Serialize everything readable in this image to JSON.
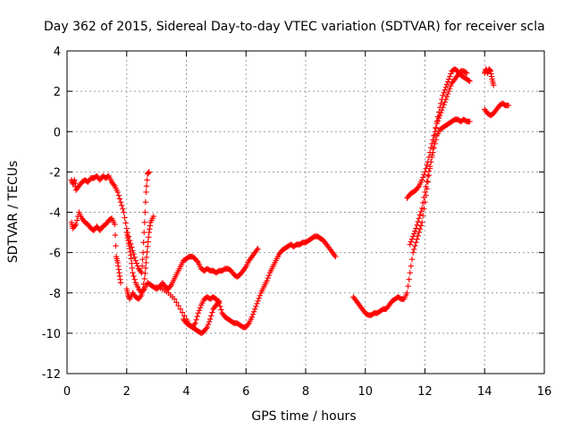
{
  "chart_data": {
    "type": "scatter",
    "title": "Day 362 of 2015, Sidereal Day-to-day VTEC variation (SDTVAR) for receiver scla",
    "xlabel": "GPS time / hours",
    "ylabel": "SDTVAR / TECUs",
    "xlim": [
      0,
      16
    ],
    "ylim": [
      -12,
      4
    ],
    "xticks": [
      0,
      2,
      4,
      6,
      8,
      10,
      12,
      14,
      16
    ],
    "yticks": [
      -12,
      -10,
      -8,
      -6,
      -4,
      -2,
      0,
      2,
      4
    ],
    "xtick_labels": [
      "0",
      "2",
      "4",
      "6",
      "8",
      "10",
      "12",
      "14",
      "16"
    ],
    "ytick_labels": [
      "-12",
      "-10",
      "-8",
      "-6",
      "-4",
      "-2",
      "0",
      "2",
      "4"
    ],
    "grid": true,
    "marker": "+",
    "color": "#ff0000",
    "series": [
      {
        "points": [
          [
            0.15,
            -2.4
          ],
          [
            0.2,
            -2.6
          ],
          [
            0.25,
            -2.4
          ],
          [
            0.3,
            -2.9
          ],
          [
            0.4,
            -2.7
          ],
          [
            0.5,
            -2.5
          ],
          [
            0.6,
            -2.4
          ],
          [
            0.7,
            -2.5
          ],
          [
            0.8,
            -2.3
          ],
          [
            0.9,
            -2.3
          ],
          [
            1.0,
            -2.2
          ],
          [
            1.1,
            -2.4
          ],
          [
            1.2,
            -2.2
          ],
          [
            1.3,
            -2.3
          ],
          [
            1.4,
            -2.2
          ],
          [
            1.5,
            -2.5
          ],
          [
            1.6,
            -2.7
          ],
          [
            1.7,
            -3.0
          ],
          [
            1.8,
            -3.5
          ],
          [
            1.9,
            -4.0
          ],
          [
            2.0,
            -4.8
          ],
          [
            2.1,
            -5.4
          ],
          [
            2.2,
            -5.9
          ],
          [
            2.3,
            -6.4
          ],
          [
            2.4,
            -6.8
          ],
          [
            2.5,
            -7.0
          ],
          [
            2.55,
            -6.0
          ],
          [
            2.6,
            -4.5
          ],
          [
            2.65,
            -3.0
          ],
          [
            2.7,
            -2.1
          ],
          [
            2.75,
            -2.0
          ]
        ]
      },
      {
        "points": [
          [
            0.15,
            -4.5
          ],
          [
            0.2,
            -4.8
          ],
          [
            0.3,
            -4.6
          ],
          [
            0.4,
            -4.0
          ],
          [
            0.5,
            -4.3
          ],
          [
            0.6,
            -4.5
          ],
          [
            0.7,
            -4.6
          ],
          [
            0.8,
            -4.8
          ],
          [
            0.9,
            -4.9
          ],
          [
            1.0,
            -4.7
          ],
          [
            1.1,
            -4.9
          ],
          [
            1.2,
            -4.7
          ],
          [
            1.3,
            -4.6
          ],
          [
            1.4,
            -4.4
          ],
          [
            1.5,
            -4.3
          ],
          [
            1.6,
            -4.6
          ],
          [
            1.65,
            -6.2
          ],
          [
            1.7,
            -6.5
          ],
          [
            1.75,
            -7.0
          ],
          [
            1.8,
            -7.5
          ]
        ]
      },
      {
        "points": [
          [
            2.0,
            -7.8
          ],
          [
            2.05,
            -8.1
          ],
          [
            2.1,
            -8.3
          ],
          [
            2.2,
            -8.0
          ],
          [
            2.3,
            -8.2
          ],
          [
            2.4,
            -8.3
          ],
          [
            2.5,
            -8.1
          ],
          [
            2.6,
            -7.3
          ],
          [
            2.65,
            -6.5
          ],
          [
            2.7,
            -5.7
          ],
          [
            2.75,
            -5.0
          ],
          [
            2.8,
            -4.5
          ],
          [
            2.9,
            -4.2
          ]
        ]
      },
      {
        "points": [
          [
            2.0,
            -5.0
          ],
          [
            2.05,
            -5.4
          ],
          [
            2.1,
            -5.8
          ],
          [
            2.15,
            -6.3
          ],
          [
            2.2,
            -7.0
          ],
          [
            2.3,
            -7.5
          ],
          [
            2.4,
            -7.8
          ],
          [
            2.5,
            -8.0
          ],
          [
            2.6,
            -7.8
          ],
          [
            2.7,
            -7.5
          ],
          [
            2.8,
            -7.6
          ],
          [
            2.9,
            -7.7
          ],
          [
            3.0,
            -7.8
          ],
          [
            3.1,
            -7.7
          ],
          [
            3.2,
            -7.5
          ],
          [
            3.3,
            -7.7
          ],
          [
            3.4,
            -7.8
          ],
          [
            3.5,
            -7.6
          ],
          [
            3.6,
            -7.3
          ],
          [
            3.7,
            -7.0
          ],
          [
            3.8,
            -6.7
          ],
          [
            3.9,
            -6.4
          ],
          [
            4.0,
            -6.3
          ],
          [
            4.1,
            -6.2
          ],
          [
            4.2,
            -6.2
          ],
          [
            4.3,
            -6.3
          ],
          [
            4.4,
            -6.5
          ],
          [
            4.5,
            -6.8
          ],
          [
            4.6,
            -6.9
          ],
          [
            4.7,
            -6.8
          ],
          [
            4.8,
            -6.9
          ],
          [
            4.9,
            -6.9
          ],
          [
            5.0,
            -7.0
          ],
          [
            5.1,
            -6.9
          ],
          [
            5.2,
            -6.9
          ],
          [
            5.3,
            -6.8
          ],
          [
            5.4,
            -6.8
          ],
          [
            5.5,
            -6.9
          ],
          [
            5.6,
            -7.1
          ],
          [
            5.7,
            -7.2
          ],
          [
            5.8,
            -7.1
          ],
          [
            5.9,
            -6.9
          ],
          [
            6.0,
            -6.7
          ],
          [
            6.1,
            -6.4
          ],
          [
            6.2,
            -6.2
          ],
          [
            6.3,
            -6.0
          ],
          [
            6.4,
            -5.8
          ]
        ]
      },
      {
        "points": [
          [
            3.0,
            -7.7
          ],
          [
            3.2,
            -7.8
          ],
          [
            3.4,
            -8.0
          ],
          [
            3.6,
            -8.3
          ],
          [
            3.8,
            -8.8
          ],
          [
            4.0,
            -9.3
          ],
          [
            4.1,
            -9.6
          ],
          [
            4.2,
            -9.7
          ],
          [
            4.3,
            -9.5
          ],
          [
            4.4,
            -9.0
          ],
          [
            4.5,
            -8.6
          ],
          [
            4.6,
            -8.3
          ],
          [
            4.7,
            -8.2
          ],
          [
            4.8,
            -8.3
          ],
          [
            4.9,
            -8.2
          ],
          [
            5.0,
            -8.3
          ],
          [
            5.1,
            -8.5
          ],
          [
            5.2,
            -9.0
          ],
          [
            5.3,
            -9.2
          ],
          [
            5.4,
            -9.3
          ],
          [
            5.5,
            -9.4
          ],
          [
            5.6,
            -9.5
          ],
          [
            5.7,
            -9.5
          ],
          [
            5.8,
            -9.6
          ],
          [
            5.9,
            -9.7
          ],
          [
            6.0,
            -9.7
          ],
          [
            6.1,
            -9.5
          ],
          [
            6.2,
            -9.2
          ],
          [
            6.3,
            -8.8
          ],
          [
            6.4,
            -8.4
          ],
          [
            6.5,
            -8.0
          ],
          [
            6.6,
            -7.7
          ],
          [
            6.7,
            -7.4
          ],
          [
            6.8,
            -7.0
          ],
          [
            6.9,
            -6.7
          ],
          [
            7.0,
            -6.4
          ],
          [
            7.1,
            -6.1
          ],
          [
            7.2,
            -5.9
          ],
          [
            7.3,
            -5.8
          ],
          [
            7.4,
            -5.7
          ],
          [
            7.5,
            -5.6
          ],
          [
            7.6,
            -5.7
          ],
          [
            7.7,
            -5.6
          ],
          [
            7.8,
            -5.6
          ],
          [
            7.9,
            -5.5
          ],
          [
            8.0,
            -5.5
          ],
          [
            8.1,
            -5.4
          ],
          [
            8.2,
            -5.3
          ],
          [
            8.3,
            -5.2
          ],
          [
            8.4,
            -5.2
          ],
          [
            8.5,
            -5.3
          ],
          [
            8.6,
            -5.4
          ],
          [
            8.7,
            -5.6
          ],
          [
            8.8,
            -5.8
          ],
          [
            8.9,
            -6.0
          ],
          [
            9.0,
            -6.2
          ]
        ]
      },
      {
        "points": [
          [
            3.9,
            -9.3
          ],
          [
            4.0,
            -9.5
          ],
          [
            4.1,
            -9.6
          ],
          [
            4.2,
            -9.7
          ],
          [
            4.3,
            -9.8
          ],
          [
            4.4,
            -9.9
          ],
          [
            4.5,
            -10.0
          ],
          [
            4.6,
            -9.9
          ],
          [
            4.7,
            -9.7
          ],
          [
            4.8,
            -9.3
          ],
          [
            4.9,
            -8.8
          ],
          [
            5.0,
            -8.6
          ],
          [
            5.1,
            -8.4
          ]
        ]
      },
      {
        "points": [
          [
            9.6,
            -8.2
          ],
          [
            9.7,
            -8.4
          ],
          [
            9.8,
            -8.6
          ],
          [
            9.9,
            -8.8
          ],
          [
            10.0,
            -9.0
          ],
          [
            10.1,
            -9.1
          ],
          [
            10.2,
            -9.1
          ],
          [
            10.3,
            -9.0
          ],
          [
            10.4,
            -9.0
          ],
          [
            10.5,
            -8.9
          ],
          [
            10.6,
            -8.8
          ],
          [
            10.7,
            -8.8
          ],
          [
            10.8,
            -8.6
          ],
          [
            10.9,
            -8.4
          ],
          [
            11.0,
            -8.3
          ],
          [
            11.1,
            -8.2
          ],
          [
            11.2,
            -8.3
          ],
          [
            11.3,
            -8.3
          ],
          [
            11.4,
            -8.0
          ],
          [
            11.5,
            -7.0
          ],
          [
            11.6,
            -6.0
          ],
          [
            11.7,
            -5.5
          ],
          [
            11.8,
            -5.0
          ],
          [
            11.9,
            -4.5
          ],
          [
            12.0,
            -3.5
          ],
          [
            12.1,
            -2.5
          ],
          [
            12.2,
            -1.5
          ],
          [
            12.3,
            -0.5
          ],
          [
            12.4,
            0.5
          ],
          [
            12.5,
            1.2
          ],
          [
            12.6,
            1.8
          ],
          [
            12.7,
            2.2
          ],
          [
            12.8,
            2.6
          ],
          [
            12.9,
            3.0
          ],
          [
            13.0,
            3.1
          ],
          [
            13.1,
            3.0
          ],
          [
            13.2,
            2.8
          ],
          [
            13.3,
            2.7
          ],
          [
            13.4,
            2.6
          ],
          [
            13.5,
            2.5
          ]
        ]
      },
      {
        "points": [
          [
            11.4,
            -3.3
          ],
          [
            11.5,
            -3.1
          ],
          [
            11.6,
            -3.0
          ],
          [
            11.7,
            -2.9
          ],
          [
            11.8,
            -2.7
          ],
          [
            11.9,
            -2.4
          ],
          [
            12.0,
            -2.0
          ],
          [
            12.1,
            -1.5
          ],
          [
            12.2,
            -0.8
          ],
          [
            12.3,
            -0.2
          ],
          [
            12.4,
            0.4
          ],
          [
            12.5,
            0.8
          ],
          [
            12.6,
            1.2
          ],
          [
            12.7,
            1.6
          ],
          [
            12.8,
            2.0
          ],
          [
            12.9,
            2.4
          ],
          [
            13.0,
            2.6
          ],
          [
            13.1,
            2.8
          ],
          [
            13.2,
            3.0
          ],
          [
            13.3,
            3.0
          ],
          [
            13.4,
            2.9
          ]
        ]
      },
      {
        "points": [
          [
            11.5,
            -5.6
          ],
          [
            11.6,
            -5.2
          ],
          [
            11.7,
            -4.8
          ],
          [
            11.8,
            -4.3
          ],
          [
            11.9,
            -3.8
          ],
          [
            12.0,
            -3.0
          ],
          [
            12.1,
            -2.2
          ],
          [
            12.2,
            -1.5
          ],
          [
            12.3,
            -0.8
          ],
          [
            12.4,
            -0.2
          ],
          [
            12.5,
            0.1
          ],
          [
            12.6,
            0.2
          ],
          [
            12.7,
            0.3
          ],
          [
            12.8,
            0.4
          ],
          [
            12.9,
            0.5
          ],
          [
            13.0,
            0.6
          ],
          [
            13.1,
            0.6
          ],
          [
            13.2,
            0.5
          ],
          [
            13.3,
            0.6
          ],
          [
            13.4,
            0.5
          ],
          [
            13.5,
            0.5
          ]
        ]
      },
      {
        "points": [
          [
            14.0,
            2.9
          ],
          [
            14.05,
            3.1
          ],
          [
            14.1,
            2.9
          ],
          [
            14.15,
            3.1
          ],
          [
            14.2,
            3.0
          ],
          [
            14.25,
            2.6
          ],
          [
            14.3,
            2.3
          ]
        ]
      },
      {
        "points": [
          [
            14.0,
            1.1
          ],
          [
            14.1,
            0.9
          ],
          [
            14.2,
            0.8
          ],
          [
            14.3,
            0.9
          ],
          [
            14.4,
            1.1
          ],
          [
            14.5,
            1.3
          ],
          [
            14.6,
            1.4
          ],
          [
            14.7,
            1.3
          ],
          [
            14.8,
            1.3
          ]
        ]
      }
    ]
  }
}
